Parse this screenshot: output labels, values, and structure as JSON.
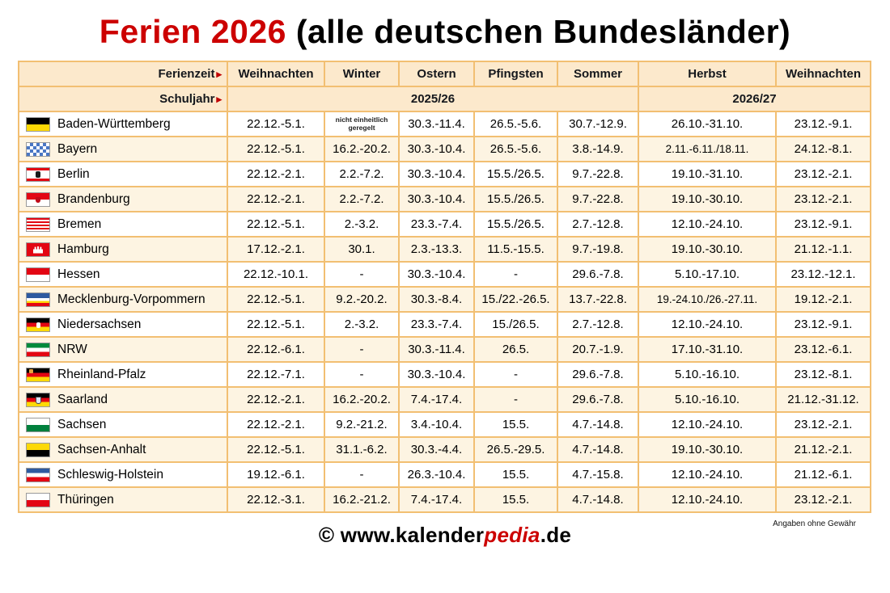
{
  "title": {
    "highlight": "Ferien 2026",
    "rest": " (alle deutschen Bundesländer)"
  },
  "table": {
    "corner_labels": {
      "row1": "Ferienzeit",
      "row2": "Schuljahr",
      "arrow": "▸"
    },
    "columns": [
      "Weihnachten",
      "Winter",
      "Ostern",
      "Pfingsten",
      "Sommer",
      "Herbst",
      "Weihnachten"
    ],
    "school_years": [
      {
        "label": "2025/26",
        "span": 5
      },
      {
        "label": "2026/27",
        "span": 2
      }
    ],
    "rows": [
      {
        "id": "bw",
        "state": "Baden-Württemberg",
        "flag": "baden-wuerttemberg-flag-icon",
        "cells": [
          "22.12.-5.1.",
          "nicht einheitlich geregelt",
          "30.3.-11.4.",
          "26.5.-5.6.",
          "30.7.-12.9.",
          "26.10.-31.10.",
          "23.12.-9.1."
        ]
      },
      {
        "id": "by",
        "state": "Bayern",
        "flag": "bayern-flag-icon",
        "cells": [
          "22.12.-5.1.",
          "16.2.-20.2.",
          "30.3.-10.4.",
          "26.5.-5.6.",
          "3.8.-14.9.",
          "2.11.-6.11./18.11.",
          "24.12.-8.1."
        ]
      },
      {
        "id": "be",
        "state": "Berlin",
        "flag": "berlin-flag-icon",
        "cells": [
          "22.12.-2.1.",
          "2.2.-7.2.",
          "30.3.-10.4.",
          "15.5./26.5.",
          "9.7.-22.8.",
          "19.10.-31.10.",
          "23.12.-2.1."
        ]
      },
      {
        "id": "bb",
        "state": "Brandenburg",
        "flag": "brandenburg-flag-icon",
        "cells": [
          "22.12.-2.1.",
          "2.2.-7.2.",
          "30.3.-10.4.",
          "15.5./26.5.",
          "9.7.-22.8.",
          "19.10.-30.10.",
          "23.12.-2.1."
        ]
      },
      {
        "id": "hb",
        "state": "Bremen",
        "flag": "bremen-flag-icon",
        "cells": [
          "22.12.-5.1.",
          "2.-3.2.",
          "23.3.-7.4.",
          "15.5./26.5.",
          "2.7.-12.8.",
          "12.10.-24.10.",
          "23.12.-9.1."
        ]
      },
      {
        "id": "hh",
        "state": "Hamburg",
        "flag": "hamburg-flag-icon",
        "cells": [
          "17.12.-2.1.",
          "30.1.",
          "2.3.-13.3.",
          "11.5.-15.5.",
          "9.7.-19.8.",
          "19.10.-30.10.",
          "21.12.-1.1."
        ]
      },
      {
        "id": "he",
        "state": "Hessen",
        "flag": "hessen-flag-icon",
        "cells": [
          "22.12.-10.1.",
          "-",
          "30.3.-10.4.",
          "-",
          "29.6.-7.8.",
          "5.10.-17.10.",
          "23.12.-12.1."
        ]
      },
      {
        "id": "mv",
        "state": "Mecklenburg-Vorpommern",
        "flag": "mecklenburg-vorpommern-flag-icon",
        "cells": [
          "22.12.-5.1.",
          "9.2.-20.2.",
          "30.3.-8.4.",
          "15./22.-26.5.",
          "13.7.-22.8.",
          "19.-24.10./26.-27.11.",
          "19.12.-2.1."
        ]
      },
      {
        "id": "ni",
        "state": "Niedersachsen",
        "flag": "niedersachsen-flag-icon",
        "cells": [
          "22.12.-5.1.",
          "2.-3.2.",
          "23.3.-7.4.",
          "15./26.5.",
          "2.7.-12.8.",
          "12.10.-24.10.",
          "23.12.-9.1."
        ]
      },
      {
        "id": "nw",
        "state": "NRW",
        "flag": "nrw-flag-icon",
        "cells": [
          "22.12.-6.1.",
          "-",
          "30.3.-11.4.",
          "26.5.",
          "20.7.-1.9.",
          "17.10.-31.10.",
          "23.12.-6.1."
        ]
      },
      {
        "id": "rp",
        "state": "Rheinland-Pfalz",
        "flag": "rheinland-pfalz-flag-icon",
        "cells": [
          "22.12.-7.1.",
          "-",
          "30.3.-10.4.",
          "-",
          "29.6.-7.8.",
          "5.10.-16.10.",
          "23.12.-8.1."
        ]
      },
      {
        "id": "sl",
        "state": "Saarland",
        "flag": "saarland-flag-icon",
        "cells": [
          "22.12.-2.1.",
          "16.2.-20.2.",
          "7.4.-17.4.",
          "-",
          "29.6.-7.8.",
          "5.10.-16.10.",
          "21.12.-31.12."
        ]
      },
      {
        "id": "sn",
        "state": "Sachsen",
        "flag": "sachsen-flag-icon",
        "cells": [
          "22.12.-2.1.",
          "9.2.-21.2.",
          "3.4.-10.4.",
          "15.5.",
          "4.7.-14.8.",
          "12.10.-24.10.",
          "23.12.-2.1."
        ]
      },
      {
        "id": "st",
        "state": "Sachsen-Anhalt",
        "flag": "sachsen-anhalt-flag-icon",
        "cells": [
          "22.12.-5.1.",
          "31.1.-6.2.",
          "30.3.-4.4.",
          "26.5.-29.5.",
          "4.7.-14.8.",
          "19.10.-30.10.",
          "21.12.-2.1."
        ]
      },
      {
        "id": "sh",
        "state": "Schleswig-Holstein",
        "flag": "schleswig-holstein-flag-icon",
        "cells": [
          "19.12.-6.1.",
          "-",
          "26.3.-10.4.",
          "15.5.",
          "4.7.-15.8.",
          "12.10.-24.10.",
          "21.12.-6.1."
        ]
      },
      {
        "id": "th",
        "state": "Thüringen",
        "flag": "thueringen-flag-icon",
        "cells": [
          "22.12.-3.1.",
          "16.2.-21.2.",
          "7.4.-17.4.",
          "15.5.",
          "4.7.-14.8.",
          "12.10.-24.10.",
          "23.12.-2.1."
        ]
      }
    ]
  },
  "footer": {
    "copyright_prefix": "© www.kalender",
    "copyright_highlight": "pedia",
    "copyright_suffix": ".de",
    "disclaimer": "Angaben ohne Gewähr"
  },
  "colors": {
    "accent_red": "#cc0000",
    "table_border": "#f2bf72",
    "header_bg": "#fce9cc",
    "row_alt_bg": "#fdf4e2"
  }
}
